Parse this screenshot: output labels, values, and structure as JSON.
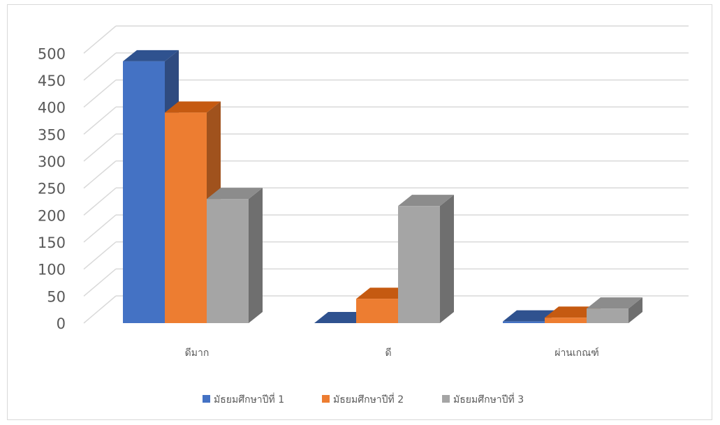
{
  "chart_data": {
    "type": "bar",
    "style": "3d-clustered-column",
    "categories": [
      "ดีมาก",
      "ดี",
      "ผ่านเกณฑ์"
    ],
    "series": [
      {
        "name": "มัธยมศึกษาปีที่ 1",
        "values": [
          485,
          0,
          3
        ],
        "color": "#4472c4",
        "top_color": "#2f528f",
        "side_color": "#2f4b80"
      },
      {
        "name": "มัธยมศึกษาปีที่ 2",
        "values": [
          390,
          45,
          10
        ],
        "color": "#ed7d31",
        "top_color": "#c55a11",
        "side_color": "#a0521d"
      },
      {
        "name": "มัธยมศึกษาปีที่ 3",
        "values": [
          230,
          217,
          27
        ],
        "color": "#a5a5a5",
        "top_color": "#8c8c8c",
        "side_color": "#6f6f6f"
      }
    ],
    "y_ticks": [
      "0",
      "50",
      "100",
      "150",
      "200",
      "250",
      "300",
      "350",
      "400",
      "450",
      "500"
    ],
    "ylim": [
      0,
      500
    ],
    "grid": true,
    "legend_position": "bottom"
  }
}
